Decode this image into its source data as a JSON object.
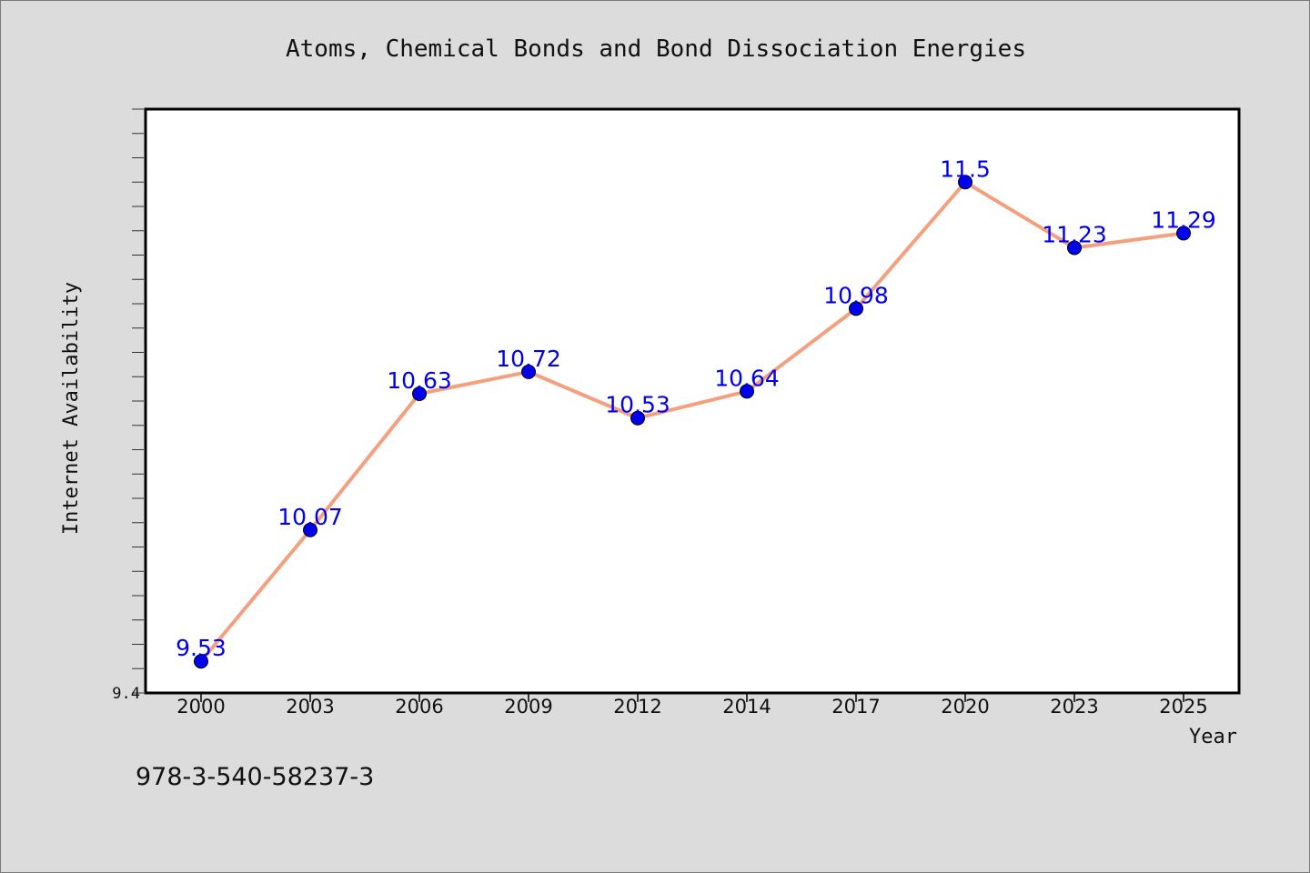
{
  "chart_data": {
    "type": "line",
    "title": "Atoms, Chemical Bonds and Bond Dissociation Energies",
    "xlabel": "Year",
    "ylabel": "Internet Availability",
    "categories": [
      "2000",
      "2003",
      "2006",
      "2009",
      "2012",
      "2014",
      "2017",
      "2020",
      "2023",
      "2025"
    ],
    "values": [
      9.53,
      10.07,
      10.63,
      10.72,
      10.53,
      10.64,
      10.98,
      11.5,
      11.23,
      11.29
    ],
    "data_labels": [
      "9.53",
      "10.07",
      "10.63",
      "10.72",
      "10.53",
      "10.64",
      "10.98",
      "11.5",
      "11.23",
      "11.29"
    ],
    "ylim": [
      9.4,
      11.8
    ],
    "ytick_labels": [
      {
        "value": 9.4,
        "label": "9.4"
      }
    ],
    "grid": false,
    "line_color": "#f4a07f",
    "marker_color": "#0000ee",
    "label_color": "#0000ee",
    "plot_background": "#ffffff",
    "figure_background": "#dcdcdc"
  },
  "footer": {
    "isbn": "978-3-540-58237-3"
  }
}
